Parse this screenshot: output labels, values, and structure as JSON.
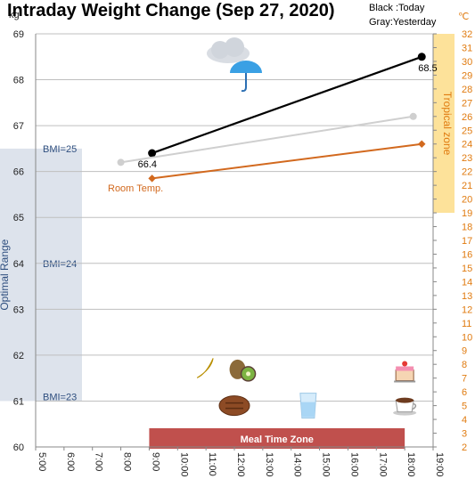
{
  "colors": {
    "today": "#000000",
    "yesterday": "#cfcfcf",
    "room_temp": "#d2691e",
    "temp_axis": "#e07b10",
    "optimal_band": "#dde3ec",
    "optimal_text": "#2f4f7f",
    "tropical_band": "#fde29a",
    "meal_zone": "#c0504d"
  },
  "chart_data": {
    "type": "line",
    "title": "Intraday Weight Change (Sep 27, 2020)",
    "legend": {
      "today": "Black :Today",
      "yesterday": "Gray:Yesterday",
      "placement": "top-right"
    },
    "ylabel_left": "kg",
    "ylabel_right": "℃",
    "y_left_range": [
      60,
      69
    ],
    "y_right_range": [
      2,
      32
    ],
    "x_range": [
      5,
      19
    ],
    "x_ticks": [
      "5:00",
      "6:00",
      "7:00",
      "8:00",
      "9:00",
      "10:00",
      "11:00",
      "12:00",
      "13:00",
      "14:00",
      "15:00",
      "16:00",
      "17:00",
      "18:00",
      "19:00"
    ],
    "y_left_ticks": [
      "60",
      "61",
      "62",
      "63",
      "64",
      "65",
      "66",
      "67",
      "68",
      "69"
    ],
    "y_right_ticks": [
      "2",
      "3",
      "4",
      "5",
      "6",
      "7",
      "8",
      "9",
      "10",
      "11",
      "12",
      "13",
      "14",
      "15",
      "16",
      "17",
      "18",
      "19",
      "20",
      "21",
      "22",
      "23",
      "24",
      "25",
      "26",
      "27",
      "28",
      "29",
      "30",
      "31",
      "32"
    ],
    "grid": true,
    "series": [
      {
        "key": "today",
        "name": "Today",
        "axis": "left",
        "x": [
          9.1,
          18.6
        ],
        "values": [
          66.4,
          68.5
        ],
        "labels": [
          "66.4",
          "68.5"
        ]
      },
      {
        "key": "yesterday",
        "name": "Yesterday",
        "axis": "left",
        "x": [
          8.0,
          18.3
        ],
        "values": [
          66.2,
          67.2
        ]
      },
      {
        "key": "room_temp",
        "name": "Room Temp.",
        "axis": "right",
        "x": [
          9.1,
          18.6
        ],
        "values": [
          21.5,
          24.0
        ]
      }
    ],
    "room_temp_label": "Room Temp.",
    "optimal_range": {
      "label": "Optimal Range",
      "kg": [
        61,
        66.5
      ],
      "bmi_labels": [
        "BMI=25",
        "BMI=24",
        "BMI=23"
      ],
      "bmi_kg": [
        66.5,
        64.0,
        61.1
      ]
    },
    "tropical_zone": {
      "label": "Tropical zone",
      "celsius": [
        19,
        32
      ]
    },
    "meal_time_zone": {
      "label": "Meal Time Zone",
      "x": [
        9.0,
        18.0
      ]
    },
    "weather_icon": "cloud-rain-umbrella-icon",
    "meal_icons": [
      {
        "icon": "banana-icon",
        "x": 11.0,
        "kg": 61.7
      },
      {
        "icon": "kiwi-icon",
        "x": 12.3,
        "kg": 61.65
      },
      {
        "icon": "steak-icon",
        "x": 12.0,
        "kg": 60.9
      },
      {
        "icon": "water-glass-icon",
        "x": 14.6,
        "kg": 60.9
      },
      {
        "icon": "cake-icon",
        "x": 18.0,
        "kg": 61.6
      },
      {
        "icon": "coffee-cup-icon",
        "x": 18.0,
        "kg": 60.9
      }
    ]
  }
}
